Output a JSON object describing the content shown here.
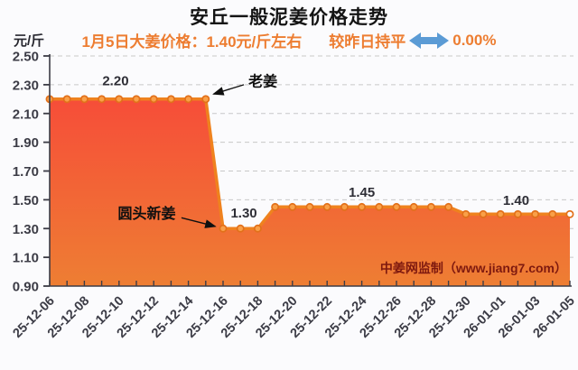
{
  "header": {
    "title": "安丘一般泥姜价格走势",
    "subtitle_price": "1月5日大姜价格：1.40元/斤左右",
    "subtitle_change": "较昨日持平",
    "subtitle_pct": "0.00%",
    "unit_label": "元/斤"
  },
  "watermark": "中姜网监制（www.jiang7.com）",
  "colors": {
    "accent_orange": "#ED7D31",
    "arrow_blue": "#5B9BD5",
    "line": "#EF821E",
    "area_top": "#F8423A",
    "area_bottom": "#EE7E33",
    "marker_fill": "#F9A048",
    "marker_stroke": "#E2701A",
    "marker_last_fill": "#FFFFFF",
    "grid": "#C8C8C8",
    "axis": "#3C3C46",
    "annotation_arrow": "#101010"
  },
  "chart_data": {
    "type": "area",
    "title": "安丘一般泥姜价格走势",
    "ylabel": "元/斤",
    "ylim": [
      0.9,
      2.5
    ],
    "ytick_step": 0.2,
    "xtick_label_every": 2,
    "grid": "dashed-horizontal",
    "x": [
      "25-12-06",
      "25-12-07",
      "25-12-08",
      "25-12-09",
      "25-12-10",
      "25-12-11",
      "25-12-12",
      "25-12-13",
      "25-12-14",
      "25-12-15",
      "25-12-16",
      "25-12-17",
      "25-12-18",
      "25-12-19",
      "25-12-20",
      "25-12-21",
      "25-12-22",
      "25-12-23",
      "25-12-24",
      "25-12-25",
      "25-12-26",
      "25-12-27",
      "25-12-28",
      "25-12-29",
      "25-12-30",
      "25-12-31",
      "26-01-01",
      "26-01-02",
      "26-01-03",
      "26-01-04",
      "26-01-05"
    ],
    "values": [
      2.2,
      2.2,
      2.2,
      2.2,
      2.2,
      2.2,
      2.2,
      2.2,
      2.2,
      2.2,
      1.3,
      1.3,
      1.3,
      1.45,
      1.45,
      1.45,
      1.45,
      1.45,
      1.45,
      1.45,
      1.45,
      1.45,
      1.45,
      1.45,
      1.4,
      1.4,
      1.4,
      1.4,
      1.4,
      1.4,
      1.4
    ],
    "annotations": [
      {
        "text": "2.20",
        "day": 3.8,
        "value": 2.33,
        "kind": "value"
      },
      {
        "text": "老姜",
        "day": 12.3,
        "value": 2.325,
        "kind": "series",
        "arrow": {
          "from": [
            11.2,
            2.3
          ],
          "to": [
            9.45,
            2.235
          ]
        }
      },
      {
        "text": "圆头新姜",
        "day": 5.6,
        "value": 1.405,
        "kind": "series",
        "arrow": {
          "from": [
            7.6,
            1.375
          ],
          "to": [
            9.55,
            1.315
          ]
        }
      },
      {
        "text": "1.30",
        "day": 11.2,
        "value": 1.41,
        "kind": "value"
      },
      {
        "text": "1.45",
        "day": 18.0,
        "value": 1.555,
        "kind": "value"
      },
      {
        "text": "1.40",
        "day": 26.9,
        "value": 1.5,
        "kind": "value"
      }
    ]
  }
}
